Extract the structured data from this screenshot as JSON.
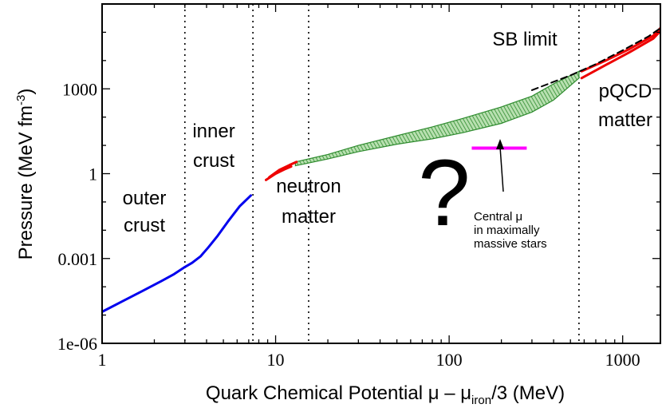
{
  "chart_data": {
    "type": "line",
    "title": "",
    "xlabel": {
      "prefix": "Quark Chemical Potential μ – μ",
      "subscript": "iron",
      "suffix": "/3 (MeV)"
    },
    "ylabel": {
      "prefix": "Pressure (MeV fm",
      "superscript": "-3",
      "suffix": ")"
    },
    "xscale": "log",
    "yscale": "log",
    "xlim": [
      1,
      1650
    ],
    "ylim": [
      1e-06,
      1000000
    ],
    "xticks": [
      {
        "value": 1,
        "label": "1"
      },
      {
        "value": 10,
        "label": "10"
      },
      {
        "value": 100,
        "label": "100"
      },
      {
        "value": 1000,
        "label": "1000"
      }
    ],
    "yticks": [
      {
        "value": 1e-06,
        "label": "1e-06"
      },
      {
        "value": 0.001,
        "label": "0.001"
      },
      {
        "value": 1,
        "label": "1"
      },
      {
        "value": 1000,
        "label": "1000"
      }
    ],
    "vlines": [
      3.0,
      7.4,
      15.5,
      560
    ],
    "series": [
      {
        "key": "outer-crust",
        "color": "#0000ee",
        "style": "solid",
        "x": [
          1,
          1.3,
          1.7,
          2.2,
          2.6,
          3.0,
          3.3,
          3.7,
          4.1,
          4.6,
          5.3,
          6.2,
          7.2
        ],
        "y": [
          1.3e-05,
          3e-05,
          7e-05,
          0.00016,
          0.00028,
          0.0005,
          0.0007,
          0.0012,
          0.0025,
          0.006,
          0.02,
          0.07,
          0.17
        ]
      },
      {
        "key": "chiral-eft-lower",
        "color": "#ee0000",
        "style": "solid",
        "x": [
          8.8,
          10,
          11.2,
          12.3
        ],
        "y": [
          0.6,
          1.0,
          1.4,
          1.8
        ]
      },
      {
        "key": "chiral-eft-upper",
        "color": "#ee0000",
        "style": "solid",
        "x": [
          9.2,
          10.5,
          12,
          13.2
        ],
        "y": [
          0.75,
          1.35,
          2.0,
          2.6
        ]
      },
      {
        "key": "pqcd-lower",
        "color": "#ee0000",
        "style": "solid",
        "x": [
          580,
          800,
          1100,
          1500,
          1650
        ],
        "y": [
          2400,
          7000,
          20000,
          60000,
          110000
        ]
      },
      {
        "key": "pqcd-upper",
        "color": "#ee0000",
        "style": "solid",
        "x": [
          580,
          800,
          1100,
          1500,
          1650
        ],
        "y": [
          4200,
          10000,
          26000,
          75000,
          140000
        ]
      },
      {
        "key": "sb-limit",
        "color": "#000000",
        "style": "dashed",
        "x": [
          300,
          500,
          700,
          1000,
          1400,
          1650
        ],
        "y": [
          900,
          3000,
          7500,
          23000,
          70000,
          140000
        ]
      }
    ],
    "band": {
      "key": "interpolation-band",
      "color": "#2e8b2e",
      "fill": "#a8d8a0",
      "x_lower": [
        13,
        20,
        30,
        50,
        80,
        120,
        200,
        300,
        400,
        560
      ],
      "y_lower": [
        1.9,
        3.3,
        6,
        11,
        17,
        28,
        60,
        150,
        400,
        2400
      ],
      "x_upper": [
        13,
        20,
        30,
        50,
        80,
        120,
        200,
        300,
        400,
        560
      ],
      "y_upper": [
        2.6,
        4.8,
        10,
        22,
        45,
        90,
        230,
        550,
        1500,
        4200
      ]
    },
    "markers": [
      {
        "key": "central-mu",
        "color": "#ff00ff",
        "x": [
          135,
          280
        ],
        "y": 8
      }
    ],
    "annotations": {
      "outer_crust": [
        "outer",
        "crust"
      ],
      "inner_crust": [
        "inner",
        "crust"
      ],
      "neutron_matter": [
        "neutron",
        "matter"
      ],
      "pqcd_matter": [
        "pQCD",
        "matter"
      ],
      "sb_limit": "SB limit",
      "question_mark": "?",
      "central_mu": [
        "Central μ",
        "in maximally",
        "massive stars"
      ]
    },
    "colors": {
      "blue": "#0000ee",
      "red": "#ee0000",
      "green_edge": "#2e8b2e",
      "green_fill": "#a8d8a0",
      "magenta": "#ff00ff",
      "axes": "#000000"
    },
    "grid": false,
    "legend": "none"
  }
}
